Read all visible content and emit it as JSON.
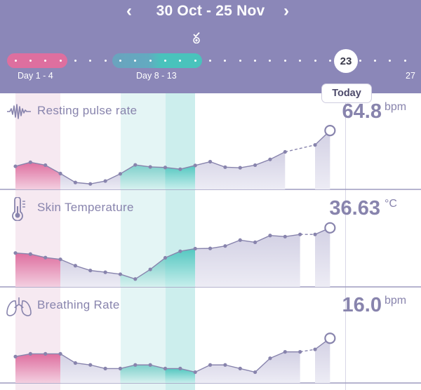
{
  "header": {
    "date_range": "30 Oct - 25 Nov",
    "prev_icon": "chevron-left-icon",
    "next_icon": "chevron-right-icon",
    "cycle_marker_icon": "ovulation-check-icon"
  },
  "cycle_track": {
    "period_label": "Day 1 - 4",
    "fertile_label": "Day 8 - 13",
    "end_day_label": "27",
    "current_day": "23",
    "today_label": "Today"
  },
  "colors": {
    "header_bg": "#8b87b8",
    "period": "#de6f9f",
    "fertile": "#63b7c0",
    "fertile_peak": "#49c3bc",
    "line": "#8884ad"
  },
  "metrics": {
    "pulse": {
      "title": "Resting pulse rate",
      "value": "64.8",
      "unit": "bpm",
      "icon": "pulse-wave-icon"
    },
    "temperature": {
      "title": "Skin Temperature",
      "value": "36.63",
      "unit": "°C",
      "icon": "thermometer-icon"
    },
    "breathing": {
      "title": "Breathing Rate",
      "value": "16.0",
      "unit": "bpm",
      "icon": "lungs-icon"
    }
  },
  "chart_data": [
    {
      "type": "area",
      "title": "Resting pulse rate",
      "x": [
        1,
        2,
        3,
        4,
        5,
        6,
        7,
        8,
        9,
        10,
        11,
        12,
        13,
        14,
        15,
        16,
        17,
        18,
        19,
        20,
        21,
        22,
        23
      ],
      "series": [
        {
          "values": [
            0.3,
            0.58,
            0.38,
            -0.2,
            -0.82,
            -0.92,
            -0.72,
            -0.22,
            0.4,
            0.26,
            0.22,
            0.1,
            0.36,
            0.62,
            0.24,
            0.2,
            0.38,
            0.78,
            1.3,
            null,
            1.78,
            2.78,
            null
          ]
        }
      ],
      "ylim": [
        -1.3,
        4.0
      ]
    },
    {
      "type": "area",
      "title": "Skin Temperature",
      "x": [
        1,
        2,
        3,
        4,
        5,
        6,
        7,
        8,
        9,
        10,
        11,
        12,
        13,
        14,
        15,
        16,
        17,
        18,
        19,
        20,
        21,
        22,
        23
      ],
      "series": [
        {
          "values": [
            0.8,
            0.7,
            0.38,
            0.22,
            -0.36,
            -0.8,
            -0.96,
            -1.14,
            -1.58,
            -0.7,
            0.36,
            0.96,
            1.2,
            1.22,
            1.44,
            1.98,
            1.78,
            2.4,
            2.3,
            2.5,
            2.5,
            3.1,
            null
          ]
        }
      ],
      "ylim": [
        -2.3,
        4.5
      ]
    },
    {
      "type": "area",
      "title": "Breathing Rate",
      "x": [
        1,
        2,
        3,
        4,
        5,
        6,
        7,
        8,
        9,
        10,
        11,
        12,
        13,
        14,
        15,
        16,
        17,
        18,
        19,
        20,
        21,
        22,
        23
      ],
      "series": [
        {
          "values": [
            0.2,
            0.4,
            0.4,
            0.4,
            -0.26,
            -0.4,
            -0.66,
            -0.66,
            -0.4,
            -0.4,
            -0.66,
            -0.66,
            -0.92,
            -0.4,
            -0.4,
            -0.66,
            -0.92,
            0.08,
            0.54,
            0.54,
            0.72,
            1.52,
            null
          ]
        }
      ],
      "ylim": [
        -1.7,
        3.5
      ]
    }
  ]
}
